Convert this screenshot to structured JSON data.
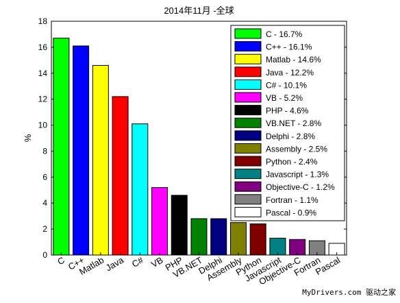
{
  "chart_data": {
    "type": "bar",
    "title": "2014年11月 -全球",
    "ylabel": "%",
    "xlabel": "",
    "ylim": [
      0,
      18
    ],
    "yticks": [
      0,
      2,
      4,
      6,
      8,
      10,
      12,
      14,
      16,
      18
    ],
    "grid": false,
    "legend_position": "top-right",
    "categories": [
      "C",
      "C++",
      "Matlab",
      "Java",
      "C#",
      "VB",
      "PHP",
      "VB.NET",
      "Delphi",
      "Assembly",
      "Python",
      "Javascript",
      "Objective-C",
      "Fortran",
      "Pascal"
    ],
    "values": [
      16.7,
      16.1,
      14.6,
      12.2,
      10.1,
      5.2,
      4.6,
      2.8,
      2.8,
      2.5,
      2.4,
      1.3,
      1.2,
      1.1,
      0.9
    ],
    "colors": [
      "#00ff00",
      "#0000ff",
      "#ffff00",
      "#ff0000",
      "#00ffff",
      "#ff00ff",
      "#000000",
      "#008000",
      "#000080",
      "#808000",
      "#800000",
      "#008080",
      "#800080",
      "#808080",
      "#ffffff"
    ],
    "legend": [
      "C - 16.7%",
      "C++ - 16.1%",
      "Matlab - 14.6%",
      "Java - 12.2%",
      "C# - 10.1%",
      "VB - 5.2%",
      "PHP - 4.6%",
      "VB.NET - 2.8%",
      "Delphi - 2.8%",
      "Assembly - 2.5%",
      "Python - 2.4%",
      "Javascript - 1.3%",
      "Objective-C - 1.2%",
      "Fortran - 1.1%",
      "Pascal - 0.9%"
    ]
  },
  "watermark": "MyDrivers.com 驱动之家"
}
